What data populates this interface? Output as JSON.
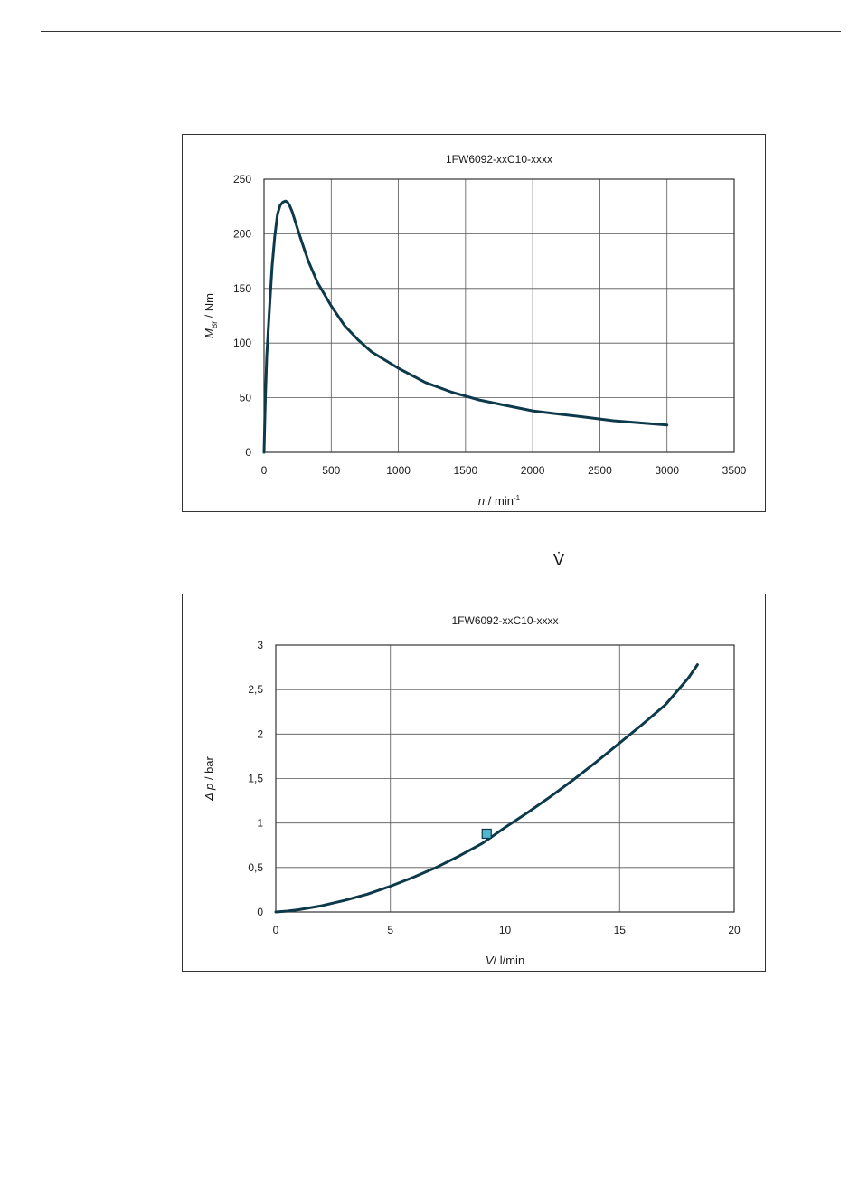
{
  "page": {
    "stray_symbol": "V̇"
  },
  "chart_data": [
    {
      "type": "line",
      "title": "1FW6092-xxC10-xxxx",
      "xlabel_var": "n",
      "xlabel_unit": " / min",
      "xlabel_sup": "-1",
      "ylabel_var": "M",
      "ylabel_sub": "Br",
      "ylabel_unit": " / Nm",
      "xlim": [
        0,
        3500
      ],
      "ylim": [
        0,
        250
      ],
      "xticks": [
        0,
        500,
        1000,
        1500,
        2000,
        2500,
        3000,
        3500
      ],
      "yticks": [
        0,
        50,
        100,
        150,
        200,
        250
      ],
      "xtick_labels": [
        "0",
        "500",
        "1000",
        "1500",
        "2000",
        "2500",
        "3000",
        "3500"
      ],
      "ytick_labels": [
        "0",
        "50",
        "100",
        "150",
        "200",
        "250"
      ],
      "grid": true,
      "line_color": "#0d3a4a",
      "series": [
        {
          "x": [
            0,
            10,
            20,
            40,
            60,
            80,
            100,
            120,
            140,
            160,
            175,
            190,
            210,
            240,
            280,
            330,
            400,
            500,
            600,
            700,
            800,
            1000,
            1200,
            1400,
            1600,
            1800,
            2000,
            2200,
            2400,
            2600,
            2800,
            3000
          ],
          "y": [
            0,
            50,
            88,
            130,
            170,
            198,
            218,
            226,
            229,
            230,
            229,
            226,
            220,
            208,
            193,
            175,
            155,
            134,
            116,
            103,
            92,
            77,
            64,
            55,
            48,
            43,
            38,
            35,
            32,
            29,
            27,
            25
          ]
        }
      ]
    },
    {
      "type": "line",
      "title": "1FW6092-xxC10-xxxx",
      "xlabel_var": "V̇",
      "xlabel_unit": "/ l/min",
      "ylabel_var": "Δ p",
      "ylabel_unit": " / bar",
      "xlim": [
        0,
        20
      ],
      "ylim": [
        0,
        3
      ],
      "xticks": [
        0,
        5,
        10,
        15,
        20
      ],
      "yticks": [
        0,
        0.5,
        1,
        1.5,
        2,
        2.5,
        3
      ],
      "xtick_labels": [
        "0",
        "5",
        "10",
        "15",
        "20"
      ],
      "ytick_labels": [
        "0",
        "0,5",
        "1",
        "1,5",
        "2",
        "2,5",
        "3"
      ],
      "grid": true,
      "line_color": "#0d3a4a",
      "marker_color": "#4fb8d0",
      "series": [
        {
          "x": [
            0,
            0.5,
            1,
            2,
            3,
            4,
            5,
            6,
            7,
            8,
            9,
            10,
            11,
            12,
            13,
            14,
            15,
            16,
            17,
            18,
            18.4
          ],
          "y": [
            0,
            0.01,
            0.025,
            0.07,
            0.13,
            0.2,
            0.29,
            0.39,
            0.5,
            0.63,
            0.77,
            0.95,
            1.12,
            1.3,
            1.49,
            1.69,
            1.9,
            2.11,
            2.33,
            2.63,
            2.78
          ]
        }
      ],
      "marker": {
        "x": 9.2,
        "y": 0.88
      }
    }
  ]
}
